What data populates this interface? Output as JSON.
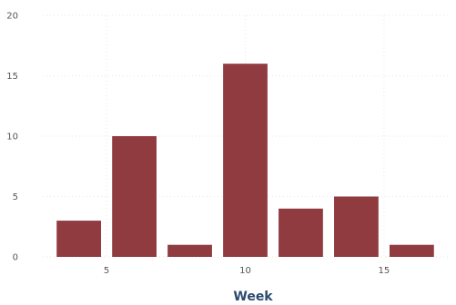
{
  "chart_data": {
    "type": "bar",
    "title": "",
    "xlabel": "Week",
    "ylabel": "",
    "x": [
      4,
      6,
      8,
      10,
      12,
      14,
      16
    ],
    "values": [
      3,
      10,
      1,
      16,
      4,
      5,
      1
    ],
    "bar_width": 1.6,
    "xlim": [
      2.7,
      17.3
    ],
    "ylim": [
      0,
      20
    ],
    "x_ticks": [
      5,
      10,
      15
    ],
    "y_ticks": [
      0,
      5,
      10,
      15,
      20
    ],
    "grid": true,
    "legend": "none",
    "colors": {
      "bar": "#8f3b3f",
      "grid": "#e6e6e6",
      "tick_text": "#555555",
      "axis_title": "#2b4a6f"
    }
  }
}
